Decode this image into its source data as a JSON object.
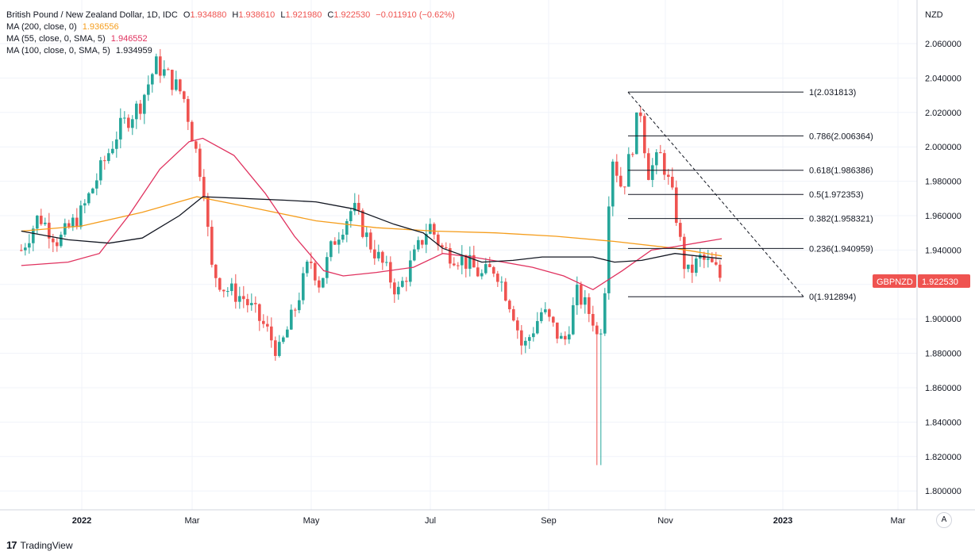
{
  "legend": {
    "symbol": "British Pound / New Zealand Dollar, 1D, IDC",
    "open_label": "O",
    "open": "1.934880",
    "high_label": "H",
    "high": "1.938610",
    "low_label": "L",
    "low": "1.921980",
    "close_label": "C",
    "close": "1.922530",
    "change": "−0.011910 (−0.62%)",
    "ma": [
      {
        "name": "MA (200, close, 0)",
        "value": "1.936556",
        "color": "#f59d1c"
      },
      {
        "name": "MA (55, close, 0, SMA, 5)",
        "value": "1.946552",
        "color": "#e0325f"
      },
      {
        "name": "MA (100, close, 0, SMA, 5)",
        "value": "1.934959",
        "color": "#131722"
      }
    ]
  },
  "colors": {
    "up": "#26a69a",
    "down": "#ef5350",
    "grid": "#f0f3fa",
    "axis_text": "#131722"
  },
  "brand": {
    "name": "TradingView",
    "logo": "17"
  },
  "auto_button": "A",
  "chart_data": {
    "type": "candlestick",
    "y_unit": "NZD",
    "ylim": [
      1.79,
      2.07
    ],
    "y_ticks": [
      "2.060000",
      "2.040000",
      "2.020000",
      "2.000000",
      "1.980000",
      "1.960000",
      "1.940000",
      "1.920000",
      "1.900000",
      "1.880000",
      "1.860000",
      "1.840000",
      "1.820000",
      "1.800000"
    ],
    "x_ticks": [
      "2022",
      "Mar",
      "May",
      "Jul",
      "Sep",
      "Nov",
      "2023",
      "Mar"
    ],
    "price_tag": {
      "label": "GBPNZD",
      "value": "1.922530"
    },
    "price_path": [
      [
        "2021-12-01",
        1.94
      ],
      [
        "2021-12-10",
        1.96
      ],
      [
        "2021-12-20",
        1.945
      ],
      [
        "2022-01-01",
        1.962
      ],
      [
        "2022-01-10",
        1.985
      ],
      [
        "2022-01-20",
        2.01
      ],
      [
        "2022-01-31",
        2.025
      ],
      [
        "2022-02-08",
        2.048
      ],
      [
        "2022-02-15",
        2.04
      ],
      [
        "2022-02-22",
        2.03
      ],
      [
        "2022-03-01",
        1.995
      ],
      [
        "2022-03-05",
        1.975
      ],
      [
        "2022-03-08",
        1.93
      ],
      [
        "2022-03-15",
        1.918
      ],
      [
        "2022-03-25",
        1.912
      ],
      [
        "2022-04-05",
        1.895
      ],
      [
        "2022-04-12",
        1.88
      ],
      [
        "2022-04-20",
        1.905
      ],
      [
        "2022-04-28",
        1.935
      ],
      [
        "2022-05-03",
        1.92
      ],
      [
        "2022-05-10",
        1.945
      ],
      [
        "2022-05-20",
        1.965
      ],
      [
        "2022-05-28",
        1.945
      ],
      [
        "2022-06-05",
        1.93
      ],
      [
        "2022-06-12",
        1.915
      ],
      [
        "2022-06-20",
        1.935
      ],
      [
        "2022-06-28",
        1.955
      ],
      [
        "2022-07-05",
        1.94
      ],
      [
        "2022-07-15",
        1.935
      ],
      [
        "2022-07-25",
        1.925
      ],
      [
        "2022-08-01",
        1.93
      ],
      [
        "2022-08-10",
        1.905
      ],
      [
        "2022-08-15",
        1.882
      ],
      [
        "2022-08-25",
        1.905
      ],
      [
        "2022-09-05",
        1.885
      ],
      [
        "2022-09-12",
        1.915
      ],
      [
        "2022-09-20",
        1.9
      ],
      [
        "2022-09-23",
        1.885
      ],
      [
        "2022-09-26",
        1.918
      ],
      [
        "2022-09-28",
        1.97
      ],
      [
        "2022-09-30",
        1.995
      ],
      [
        "2022-10-05",
        1.975
      ],
      [
        "2022-10-11",
        2.005
      ],
      [
        "2022-10-14",
        2.025
      ],
      [
        "2022-10-18",
        1.985
      ],
      [
        "2022-10-25",
        1.995
      ],
      [
        "2022-11-01",
        1.965
      ],
      [
        "2022-11-04",
        1.942
      ],
      [
        "2022-11-07",
        1.925
      ],
      [
        "2022-11-14",
        1.935
      ],
      [
        "2022-11-21",
        1.93
      ],
      [
        "2022-11-25",
        1.9225
      ]
    ],
    "series": [
      {
        "name": "MA (200, close, 0)",
        "color": "#f59d1c",
        "points": [
          [
            "2021-12-01",
            1.951
          ],
          [
            "2022-01-01",
            1.954
          ],
          [
            "2022-02-01",
            1.962
          ],
          [
            "2022-03-01",
            1.971
          ],
          [
            "2022-04-01",
            1.964
          ],
          [
            "2022-05-01",
            1.957
          ],
          [
            "2022-06-01",
            1.953
          ],
          [
            "2022-07-01",
            1.951
          ],
          [
            "2022-08-01",
            1.95
          ],
          [
            "2022-09-01",
            1.948
          ],
          [
            "2022-10-01",
            1.945
          ],
          [
            "2022-11-01",
            1.941
          ],
          [
            "2022-11-25",
            1.9366
          ]
        ]
      },
      {
        "name": "MA (55, close, 0, SMA, 5)",
        "color": "#e0325f",
        "points": [
          [
            "2021-12-01",
            1.931
          ],
          [
            "2021-12-25",
            1.933
          ],
          [
            "2022-01-10",
            1.938
          ],
          [
            "2022-01-25",
            1.96
          ],
          [
            "2022-02-10",
            1.987
          ],
          [
            "2022-02-25",
            2.003
          ],
          [
            "2022-03-04",
            2.005
          ],
          [
            "2022-03-20",
            1.995
          ],
          [
            "2022-04-05",
            1.973
          ],
          [
            "2022-04-20",
            1.948
          ],
          [
            "2022-05-05",
            1.928
          ],
          [
            "2022-05-15",
            1.925
          ],
          [
            "2022-06-01",
            1.927
          ],
          [
            "2022-06-20",
            1.93
          ],
          [
            "2022-07-05",
            1.938
          ],
          [
            "2022-07-20",
            1.936
          ],
          [
            "2022-08-05",
            1.933
          ],
          [
            "2022-08-20",
            1.93
          ],
          [
            "2022-09-05",
            1.925
          ],
          [
            "2022-09-20",
            1.917
          ],
          [
            "2022-10-05",
            1.928
          ],
          [
            "2022-10-20",
            1.94
          ],
          [
            "2022-11-01",
            1.942
          ],
          [
            "2022-11-25",
            1.9466
          ]
        ]
      },
      {
        "name": "MA (100, close, 0, SMA, 5)",
        "color": "#131722",
        "points": [
          [
            "2021-12-01",
            1.951
          ],
          [
            "2021-12-25",
            1.946
          ],
          [
            "2022-01-15",
            1.944
          ],
          [
            "2022-02-01",
            1.947
          ],
          [
            "2022-02-20",
            1.96
          ],
          [
            "2022-03-04",
            1.971
          ],
          [
            "2022-03-25",
            1.97
          ],
          [
            "2022-04-15",
            1.969
          ],
          [
            "2022-05-01",
            1.968
          ],
          [
            "2022-05-20",
            1.964
          ],
          [
            "2022-06-10",
            1.955
          ],
          [
            "2022-06-25",
            1.95
          ],
          [
            "2022-07-05",
            1.941
          ],
          [
            "2022-07-25",
            1.933
          ],
          [
            "2022-08-10",
            1.934
          ],
          [
            "2022-08-25",
            1.936
          ],
          [
            "2022-09-05",
            1.936
          ],
          [
            "2022-09-20",
            1.936
          ],
          [
            "2022-10-01",
            1.933
          ],
          [
            "2022-10-15",
            1.934
          ],
          [
            "2022-11-01",
            1.938
          ],
          [
            "2022-11-25",
            1.935
          ]
        ]
      }
    ],
    "fibonacci": {
      "start_date": "2022-10-14",
      "end_date": "2022-12-15",
      "high": 2.031813,
      "low": 1.912894,
      "levels": [
        {
          "ratio": "1",
          "value": 2.031813,
          "label": "1(2.031813)"
        },
        {
          "ratio": "0.786",
          "value": 2.006364,
          "label": "0.786(2.006364)"
        },
        {
          "ratio": "0.618",
          "value": 1.986386,
          "label": "0.618(1.986386)"
        },
        {
          "ratio": "0.5",
          "value": 1.972353,
          "label": "0.5(1.972353)"
        },
        {
          "ratio": "0.382",
          "value": 1.958321,
          "label": "0.382(1.958321)"
        },
        {
          "ratio": "0.236",
          "value": 1.940959,
          "label": "0.236(1.940959)"
        },
        {
          "ratio": "0",
          "value": 1.912894,
          "label": "0(1.912894)"
        }
      ]
    }
  }
}
